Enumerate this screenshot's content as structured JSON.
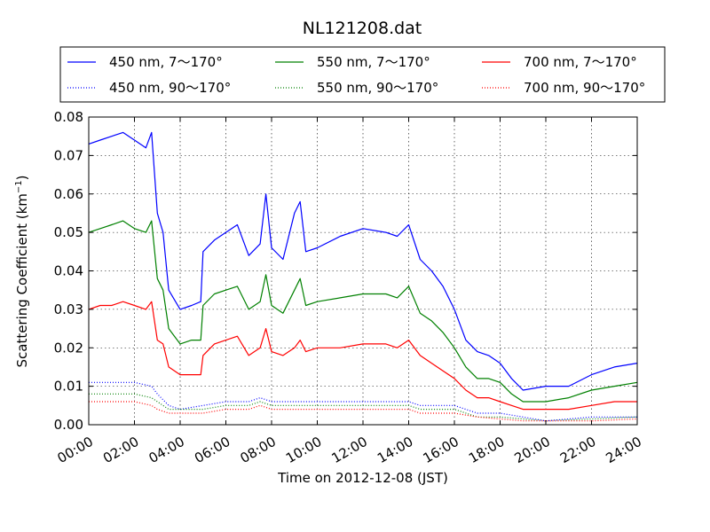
{
  "chart_data": {
    "type": "line",
    "title": "NL121208.dat",
    "xlabel": "Time on 2012-12-08 (JST)",
    "ylabel_main": "Scattering Coefficient (km",
    "ylabel_sup": "−1",
    "ylabel_close": ")",
    "xlim": [
      0,
      24
    ],
    "ylim": [
      0,
      0.08
    ],
    "x_ticks": [
      0,
      2,
      4,
      6,
      8,
      10,
      12,
      14,
      16,
      18,
      20,
      22,
      24
    ],
    "x_tick_labels": [
      "00:00",
      "02:00",
      "04:00",
      "06:00",
      "08:00",
      "10:00",
      "12:00",
      "14:00",
      "16:00",
      "18:00",
      "20:00",
      "22:00",
      "24:00"
    ],
    "y_ticks": [
      0,
      0.01,
      0.02,
      0.03,
      0.04,
      0.05,
      0.06,
      0.07,
      0.08
    ],
    "y_tick_labels": [
      "0.00",
      "0.01",
      "0.02",
      "0.03",
      "0.04",
      "0.05",
      "0.06",
      "0.07",
      "0.08"
    ],
    "grid": true,
    "legend_position": "top",
    "series": [
      {
        "name": "450 nm, 7～170°",
        "color": "#0000ff",
        "style": "solid",
        "x": [
          0,
          0.5,
          1,
          1.5,
          2,
          2.5,
          2.75,
          3,
          3.25,
          3.5,
          4,
          4.5,
          4.9,
          5,
          5.5,
          6,
          6.5,
          7,
          7.5,
          7.75,
          8,
          8.5,
          9,
          9.25,
          9.5,
          10,
          11,
          12,
          13,
          13.5,
          14,
          14.5,
          15,
          15.5,
          16,
          16.5,
          17,
          17.5,
          18,
          18.5,
          19,
          20,
          21,
          22,
          23,
          24
        ],
        "y": [
          0.073,
          0.074,
          0.075,
          0.076,
          0.074,
          0.072,
          0.076,
          0.055,
          0.05,
          0.035,
          0.03,
          0.031,
          0.032,
          0.045,
          0.048,
          0.05,
          0.052,
          0.044,
          0.047,
          0.06,
          0.046,
          0.043,
          0.055,
          0.058,
          0.045,
          0.046,
          0.049,
          0.051,
          0.05,
          0.049,
          0.052,
          0.043,
          0.04,
          0.036,
          0.03,
          0.022,
          0.019,
          0.018,
          0.016,
          0.012,
          0.009,
          0.01,
          0.01,
          0.013,
          0.015,
          0.016
        ]
      },
      {
        "name": "550 nm, 7～170°",
        "color": "#008000",
        "style": "solid",
        "x": [
          0,
          0.5,
          1,
          1.5,
          2,
          2.5,
          2.75,
          3,
          3.25,
          3.5,
          4,
          4.5,
          4.9,
          5,
          5.5,
          6,
          6.5,
          7,
          7.5,
          7.75,
          8,
          8.5,
          9,
          9.25,
          9.5,
          10,
          11,
          12,
          13,
          13.5,
          14,
          14.5,
          15,
          15.5,
          16,
          16.5,
          17,
          17.5,
          18,
          18.5,
          19,
          20,
          21,
          22,
          23,
          24
        ],
        "y": [
          0.05,
          0.051,
          0.052,
          0.053,
          0.051,
          0.05,
          0.053,
          0.038,
          0.035,
          0.025,
          0.021,
          0.022,
          0.022,
          0.031,
          0.034,
          0.035,
          0.036,
          0.03,
          0.032,
          0.039,
          0.031,
          0.029,
          0.035,
          0.038,
          0.031,
          0.032,
          0.033,
          0.034,
          0.034,
          0.033,
          0.036,
          0.029,
          0.027,
          0.024,
          0.02,
          0.015,
          0.012,
          0.012,
          0.011,
          0.008,
          0.006,
          0.006,
          0.007,
          0.009,
          0.01,
          0.011
        ]
      },
      {
        "name": "700 nm, 7～170°",
        "color": "#ff0000",
        "style": "solid",
        "x": [
          0,
          0.5,
          1,
          1.5,
          2,
          2.5,
          2.75,
          3,
          3.25,
          3.5,
          4,
          4.5,
          4.9,
          5,
          5.5,
          6,
          6.5,
          7,
          7.5,
          7.75,
          8,
          8.5,
          9,
          9.25,
          9.5,
          10,
          11,
          12,
          13,
          13.5,
          14,
          14.5,
          15,
          15.5,
          16,
          16.5,
          17,
          17.5,
          18,
          18.5,
          19,
          20,
          21,
          22,
          23,
          24
        ],
        "y": [
          0.03,
          0.031,
          0.031,
          0.032,
          0.031,
          0.03,
          0.032,
          0.022,
          0.021,
          0.015,
          0.013,
          0.013,
          0.013,
          0.018,
          0.021,
          0.022,
          0.023,
          0.018,
          0.02,
          0.025,
          0.019,
          0.018,
          0.02,
          0.022,
          0.019,
          0.02,
          0.02,
          0.021,
          0.021,
          0.02,
          0.022,
          0.018,
          0.016,
          0.014,
          0.012,
          0.009,
          0.007,
          0.007,
          0.006,
          0.005,
          0.004,
          0.004,
          0.004,
          0.005,
          0.006,
          0.006
        ]
      },
      {
        "name": "450 nm, 90～170°",
        "color": "#0000ff",
        "style": "dotted",
        "x": [
          0,
          1,
          2,
          2.75,
          3,
          3.5,
          4,
          5,
          6,
          7,
          7.5,
          8,
          9,
          10,
          12,
          14,
          14.5,
          16,
          17,
          18,
          19,
          20,
          22,
          24
        ],
        "y": [
          0.011,
          0.011,
          0.011,
          0.01,
          0.008,
          0.005,
          0.004,
          0.005,
          0.006,
          0.006,
          0.007,
          0.006,
          0.006,
          0.006,
          0.006,
          0.006,
          0.005,
          0.005,
          0.003,
          0.003,
          0.002,
          0.001,
          0.002,
          0.002
        ]
      },
      {
        "name": "550 nm, 90～170°",
        "color": "#008000",
        "style": "dotted",
        "x": [
          0,
          1,
          2,
          2.75,
          3,
          3.5,
          4,
          5,
          6,
          7,
          7.5,
          8,
          9,
          10,
          12,
          14,
          14.5,
          16,
          17,
          18,
          19,
          20,
          22,
          24
        ],
        "y": [
          0.008,
          0.008,
          0.008,
          0.007,
          0.006,
          0.004,
          0.004,
          0.004,
          0.005,
          0.005,
          0.006,
          0.005,
          0.005,
          0.005,
          0.005,
          0.005,
          0.004,
          0.004,
          0.002,
          0.002,
          0.0015,
          0.001,
          0.0015,
          0.002
        ]
      },
      {
        "name": "700 nm, 90～170°",
        "color": "#ff0000",
        "style": "dotted",
        "x": [
          0,
          1,
          2,
          2.75,
          3,
          3.5,
          4,
          5,
          6,
          7,
          7.5,
          8,
          9,
          10,
          12,
          14,
          14.5,
          16,
          17,
          18,
          19,
          20,
          22,
          24
        ],
        "y": [
          0.006,
          0.006,
          0.006,
          0.005,
          0.004,
          0.003,
          0.003,
          0.003,
          0.004,
          0.004,
          0.005,
          0.004,
          0.004,
          0.004,
          0.004,
          0.004,
          0.003,
          0.003,
          0.002,
          0.0015,
          0.001,
          0.001,
          0.001,
          0.0015
        ]
      }
    ]
  }
}
